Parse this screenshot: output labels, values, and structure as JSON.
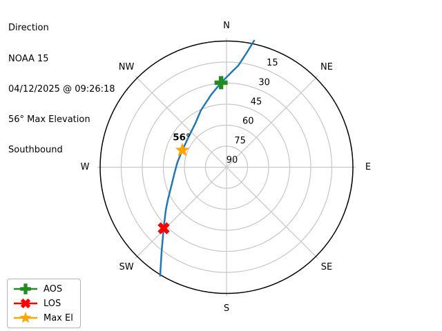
{
  "window": {
    "background": "#ffffff"
  },
  "header": {
    "title": "Direction",
    "satellite": "NOAA 15",
    "timestamp": "04/12/2025 @ 09:26:18",
    "max_elevation_text": "56° Max Elevation",
    "pass_direction": "Southbound"
  },
  "chart_data": {
    "type": "polar_satellite_pass",
    "title": "Direction",
    "compass_labels": [
      "N",
      "NE",
      "E",
      "SE",
      "S",
      "SW",
      "W",
      "NW"
    ],
    "elevation_ticks": [
      15,
      30,
      45,
      60,
      75,
      90
    ],
    "elevation_range": [
      0,
      90
    ],
    "tick_label_azimuth_deg": 22.5,
    "grid": true,
    "track": {
      "name": "NOAA 15 pass",
      "color": "#1f77b4",
      "points_az_el": [
        [
          12.3,
          -2.4
        ],
        [
          9.9,
          7.4
        ],
        [
          6.6,
          17.0
        ],
        [
          3.7,
          21.2
        ],
        [
          356.3,
          29.6
        ],
        [
          348.2,
          37.0
        ],
        [
          335.8,
          45.5
        ],
        [
          324.2,
          51.8
        ],
        [
          309.3,
          55.3
        ],
        [
          291.0,
          56.3
        ],
        [
          276.0,
          54.9
        ],
        [
          264.3,
          52.9
        ],
        [
          251.0,
          48.4
        ],
        [
          240.8,
          42.1
        ],
        [
          234.6,
          36.9
        ],
        [
          225.8,
          27.6
        ],
        [
          217.5,
          14.1
        ],
        [
          211.4,
          -0.7
        ]
      ]
    },
    "markers": [
      {
        "id": "aos",
        "label": "AOS",
        "shape": "plus",
        "color": "#228B22",
        "az": 356.3,
        "el": 29.6
      },
      {
        "id": "los",
        "label": "LOS",
        "shape": "x",
        "color": "#ff0000",
        "az": 225.8,
        "el": 27.6
      },
      {
        "id": "maxel",
        "label": "Max El",
        "shape": "star",
        "color": "#ffa500",
        "az": 291.0,
        "el": 56.3,
        "annotation": "56°"
      }
    ],
    "annotation": {
      "text": "56°"
    },
    "colors": {
      "grid": "#c6c6c6",
      "outline": "#000000",
      "track": "#1f77b4"
    }
  },
  "legend": {
    "items": [
      {
        "label": "AOS",
        "shape": "plus",
        "color": "#228B22"
      },
      {
        "label": "LOS",
        "shape": "x",
        "color": "#ff0000"
      },
      {
        "label": "Max El",
        "shape": "star",
        "color": "#ffa500"
      }
    ]
  }
}
